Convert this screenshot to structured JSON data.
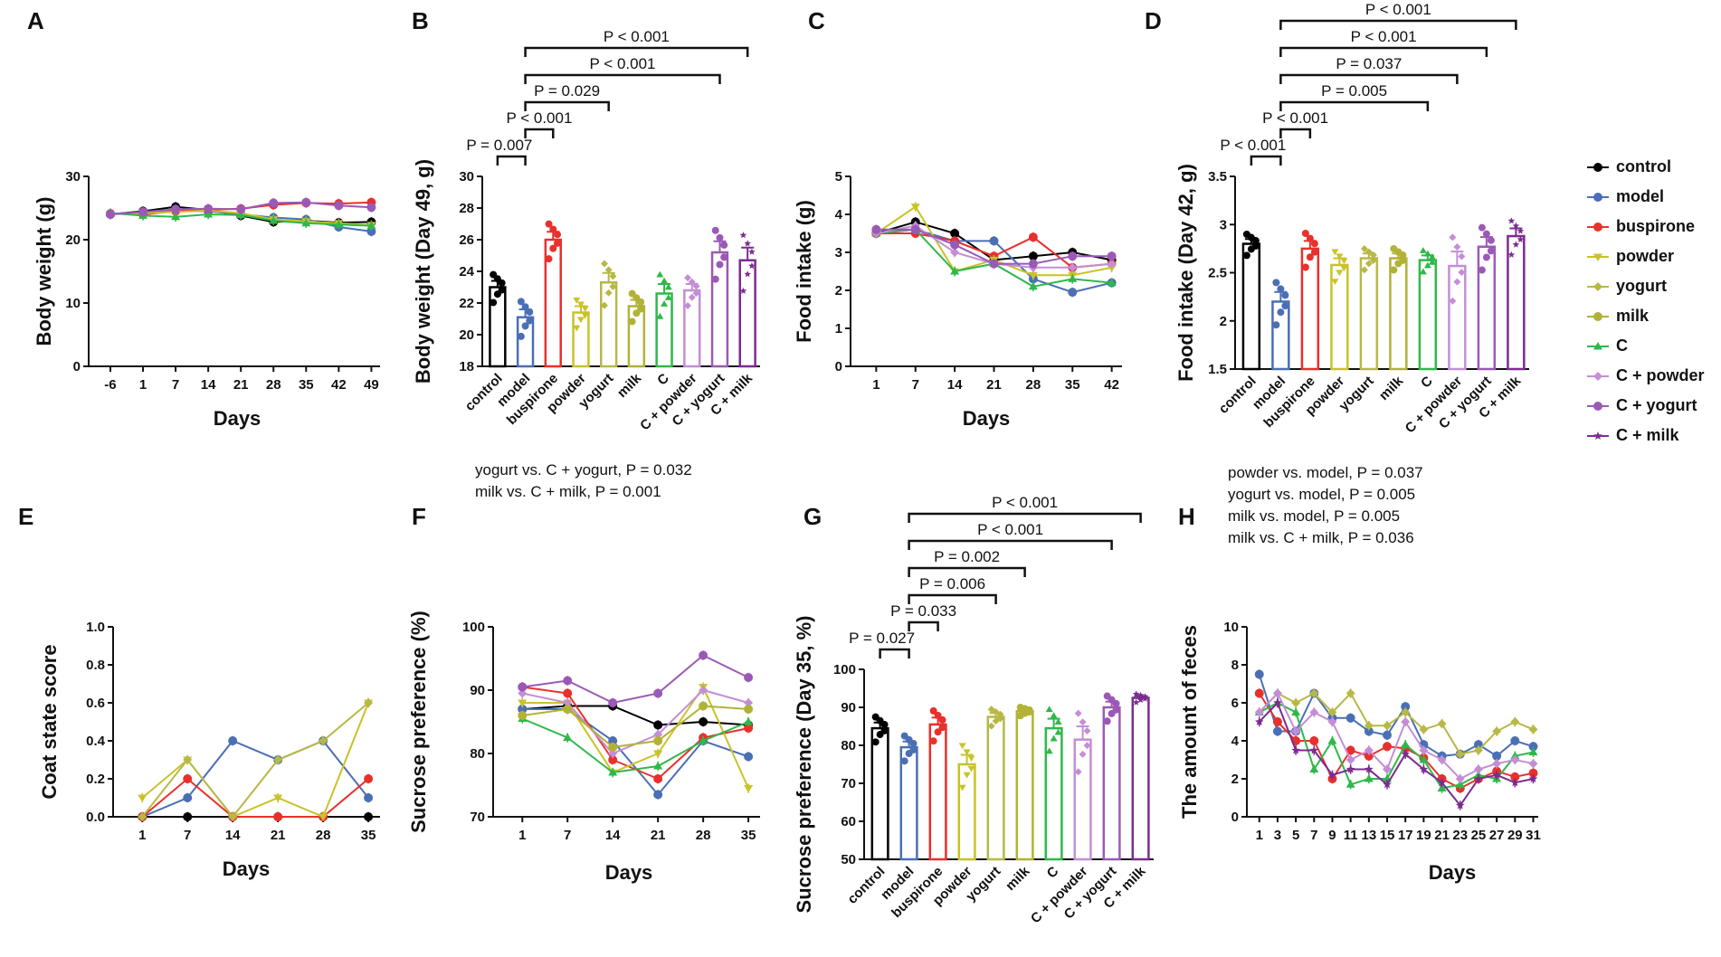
{
  "colors": {
    "control": "#000000",
    "model": "#4a6fb5",
    "buspirone": "#e8302c",
    "powder": "#c9c229",
    "yogurt": "#b8b846",
    "milk": "#b2b236",
    "C": "#2fb84a",
    "C + powder": "#c48ed6",
    "C + yogurt": "#9b59b6",
    "C + milk": "#7b2c8f"
  },
  "legend": {
    "items": [
      {
        "name": "control",
        "marker": "circle"
      },
      {
        "name": "model",
        "marker": "circle"
      },
      {
        "name": "buspirone",
        "marker": "circle"
      },
      {
        "name": "powder",
        "marker": "tri-down"
      },
      {
        "name": "yogurt",
        "marker": "diamond"
      },
      {
        "name": "milk",
        "marker": "circle"
      },
      {
        "name": "C",
        "marker": "tri-up"
      },
      {
        "name": "C + powder",
        "marker": "diamond"
      },
      {
        "name": "C + yogurt",
        "marker": "circle"
      },
      {
        "name": "C + milk",
        "marker": "star"
      }
    ]
  },
  "chart_data": [
    {
      "panel": "A",
      "type": "line",
      "xlabel": "Days",
      "ylabel": "Body weight (g)",
      "ylim": [
        0,
        30
      ],
      "yticks": [
        0,
        10,
        20,
        30
      ],
      "x": [
        "-6",
        "1",
        "7",
        "14",
        "21",
        "28",
        "35",
        "42",
        "49"
      ],
      "series": [
        {
          "name": "control",
          "values": [
            24.0,
            24.5,
            25.2,
            24.7,
            23.8,
            22.8,
            23.0,
            22.7,
            22.8
          ]
        },
        {
          "name": "model",
          "values": [
            24.1,
            24.3,
            24.6,
            24.5,
            24.0,
            23.5,
            23.2,
            22.0,
            21.3
          ]
        },
        {
          "name": "buspirone",
          "values": [
            24.1,
            24.0,
            24.5,
            24.7,
            24.9,
            25.5,
            25.8,
            25.7,
            25.9
          ]
        },
        {
          "name": "powder",
          "values": [
            24.0,
            24.2,
            24.4,
            24.6,
            24.2,
            23.2,
            22.9,
            22.6,
            22.3
          ]
        },
        {
          "name": "C",
          "values": [
            24.2,
            23.8,
            23.6,
            24.0,
            23.9,
            23.0,
            22.6,
            22.4,
            22.2
          ]
        },
        {
          "name": "C + yogurt",
          "values": [
            24.0,
            24.4,
            24.8,
            24.9,
            24.8,
            25.8,
            25.9,
            25.4,
            25.1
          ]
        }
      ]
    },
    {
      "panel": "B",
      "type": "bar",
      "ylabel": "Body weight (Day 49, g)",
      "ylim": [
        18,
        30
      ],
      "yticks": [
        18,
        20,
        22,
        24,
        26,
        28,
        30
      ],
      "categories": [
        "control",
        "model",
        "buspirone",
        "powder",
        "yogurt",
        "milk",
        "C",
        "C + powder",
        "C + yogurt",
        "C + milk"
      ],
      "values": [
        23.0,
        21.1,
        26.0,
        21.4,
        23.3,
        21.8,
        22.6,
        22.8,
        25.2,
        24.7
      ],
      "errors": [
        0.4,
        0.5,
        0.5,
        0.4,
        0.6,
        0.4,
        0.6,
        0.4,
        0.7,
        0.8
      ],
      "comparisons": [
        {
          "a": "control",
          "b": "model",
          "label": "P = 0.007"
        },
        {
          "a": "model",
          "b": "buspirone",
          "label": "P < 0.001"
        },
        {
          "a": "model",
          "b": "yogurt",
          "label": "P = 0.029"
        },
        {
          "a": "model",
          "b": "C + yogurt",
          "label": "P < 0.001"
        },
        {
          "a": "model",
          "b": "C + milk",
          "label": "P < 0.001"
        }
      ],
      "notes": [
        "yogurt vs. C + yogurt, P = 0.032",
        "milk vs. C + milk, P = 0.001"
      ]
    },
    {
      "panel": "C",
      "type": "line",
      "xlabel": "Days",
      "ylabel": "Food intake (g)",
      "ylim": [
        0,
        5
      ],
      "yticks": [
        0,
        1,
        2,
        3,
        4,
        5
      ],
      "x": [
        "1",
        "7",
        "14",
        "21",
        "28",
        "35",
        "42"
      ],
      "series": [
        {
          "name": "control",
          "values": [
            3.5,
            3.8,
            3.5,
            2.8,
            2.9,
            3.0,
            2.8
          ]
        },
        {
          "name": "model",
          "values": [
            3.5,
            3.6,
            3.3,
            3.3,
            2.3,
            1.95,
            2.2
          ]
        },
        {
          "name": "buspirone",
          "values": [
            3.5,
            3.5,
            3.3,
            2.9,
            3.4,
            2.6,
            2.7
          ]
        },
        {
          "name": "powder",
          "values": [
            3.5,
            4.2,
            2.5,
            2.8,
            2.4,
            2.4,
            2.6
          ]
        },
        {
          "name": "C",
          "values": [
            3.5,
            3.6,
            2.5,
            2.7,
            2.1,
            2.3,
            2.2
          ]
        },
        {
          "name": "C + powder",
          "values": [
            3.5,
            3.7,
            3.0,
            2.7,
            2.6,
            2.6,
            2.7
          ]
        },
        {
          "name": "C + yogurt",
          "values": [
            3.6,
            3.6,
            3.2,
            2.7,
            2.7,
            2.9,
            2.9
          ]
        }
      ]
    },
    {
      "panel": "D",
      "type": "bar",
      "ylabel": "Food intake (Day 42, g)",
      "ylim": [
        1.5,
        3.5
      ],
      "yticks": [
        1.5,
        2.0,
        2.5,
        3.0,
        3.5
      ],
      "categories": [
        "control",
        "model",
        "buspirone",
        "powder",
        "yogurt",
        "milk",
        "C",
        "C + powder",
        "C + yogurt",
        "C + milk"
      ],
      "values": [
        2.8,
        2.2,
        2.75,
        2.58,
        2.65,
        2.65,
        2.63,
        2.57,
        2.77,
        2.88
      ],
      "errors": [
        0.05,
        0.1,
        0.08,
        0.07,
        0.05,
        0.05,
        0.05,
        0.15,
        0.1,
        0.08
      ],
      "comparisons": [
        {
          "a": "control",
          "b": "model",
          "label": "P < 0.001"
        },
        {
          "a": "model",
          "b": "buspirone",
          "label": "P < 0.001"
        },
        {
          "a": "model",
          "b": "C",
          "label": "P = 0.005"
        },
        {
          "a": "model",
          "b": "C + powder",
          "label": "P = 0.037"
        },
        {
          "a": "model",
          "b": "C + yogurt",
          "label": "P < 0.001"
        },
        {
          "a": "model",
          "b": "C + milk",
          "label": "P < 0.001"
        }
      ],
      "notes": [
        "powder vs. model, P = 0.037",
        "yogurt vs. model, P = 0.005",
        "milk vs. model, P = 0.005",
        "milk vs. C + milk, P = 0.036"
      ]
    },
    {
      "panel": "E",
      "type": "line",
      "xlabel": "Days",
      "ylabel": "Coat state score",
      "ylim": [
        0,
        1.0
      ],
      "yticks": [
        "0.0",
        "0.2",
        "0.4",
        "0.6",
        "0.8",
        "1.0"
      ],
      "x": [
        "1",
        "7",
        "14",
        "21",
        "28",
        "35"
      ],
      "series": [
        {
          "name": "control",
          "values": [
            0,
            0,
            0,
            0,
            0,
            0
          ]
        },
        {
          "name": "model",
          "values": [
            0,
            0.1,
            0.4,
            0.3,
            0.4,
            0.1
          ]
        },
        {
          "name": "buspirone",
          "values": [
            0,
            0.2,
            0,
            0,
            0,
            0.2
          ]
        },
        {
          "name": "powder",
          "values": [
            0.1,
            0.3,
            0,
            0.1,
            0,
            0.6
          ]
        },
        {
          "name": "yogurt",
          "values": [
            0,
            0.3,
            0,
            0.3,
            0.4,
            0.6
          ]
        }
      ]
    },
    {
      "panel": "F",
      "type": "line",
      "xlabel": "Days",
      "ylabel": "Sucrose preference (%)",
      "ylim": [
        70,
        100
      ],
      "yticks": [
        70,
        80,
        90,
        100
      ],
      "x": [
        "1",
        "7",
        "14",
        "21",
        "28",
        "35"
      ],
      "series": [
        {
          "name": "control",
          "values": [
            87,
            87.5,
            87.5,
            84.5,
            85,
            84.5
          ]
        },
        {
          "name": "model",
          "values": [
            87,
            87,
            82,
            73.5,
            82,
            79.5
          ]
        },
        {
          "name": "buspirone",
          "values": [
            90.5,
            89.5,
            79,
            76,
            82.5,
            84
          ]
        },
        {
          "name": "powder",
          "values": [
            88,
            88,
            77,
            80,
            90.5,
            74.5
          ]
        },
        {
          "name": "C",
          "values": [
            85.5,
            82.5,
            77,
            78,
            82,
            85
          ]
        },
        {
          "name": "C + powder",
          "values": [
            89.5,
            88,
            80,
            83,
            90,
            88
          ]
        },
        {
          "name": "C + yogurt",
          "values": [
            90.5,
            91.5,
            88,
            89.5,
            95.5,
            92
          ]
        },
        {
          "name": "milk",
          "values": [
            86,
            87,
            81,
            82,
            87.5,
            87
          ]
        }
      ]
    },
    {
      "panel": "G",
      "type": "bar",
      "ylabel": "Sucrose preference (Day 35, %)",
      "ylim": [
        50,
        100
      ],
      "yticks": [
        50,
        60,
        70,
        80,
        90,
        100
      ],
      "categories": [
        "control",
        "model",
        "buspirone",
        "powder",
        "yogurt",
        "milk",
        "C",
        "C + powder",
        "C + yogurt",
        "C + milk"
      ],
      "values": [
        84.5,
        79.5,
        85.5,
        75,
        87.5,
        89,
        84.5,
        81.5,
        90,
        92.5
      ],
      "errors": [
        1.5,
        1.5,
        1.8,
        2.5,
        1,
        0.5,
        2.5,
        3.5,
        1.5,
        0.5
      ],
      "comparisons": [
        {
          "a": "control",
          "b": "model",
          "label": "P = 0.027"
        },
        {
          "a": "model",
          "b": "buspirone",
          "label": "P = 0.033"
        },
        {
          "a": "model",
          "b": "yogurt",
          "label": "P = 0.006"
        },
        {
          "a": "model",
          "b": "milk",
          "label": "P = 0.002"
        },
        {
          "a": "model",
          "b": "C + yogurt",
          "label": "P < 0.001"
        },
        {
          "a": "model",
          "b": "C + milk",
          "label": "P < 0.001"
        }
      ]
    },
    {
      "panel": "H",
      "type": "line",
      "xlabel": "Days",
      "ylabel": "The amount of feces",
      "ylim": [
        0,
        10
      ],
      "yticks": [
        0,
        2,
        4,
        6,
        8,
        10
      ],
      "x": [
        "1",
        "3",
        "5",
        "7",
        "9",
        "11",
        "13",
        "15",
        "17",
        "19",
        "21",
        "23",
        "25",
        "27",
        "29",
        "31"
      ],
      "series": [
        {
          "name": "model",
          "values": [
            7.5,
            4.5,
            4.5,
            6.5,
            5.2,
            5.2,
            4.5,
            4.3,
            5.8,
            3.8,
            3.2,
            3.3,
            3.8,
            3.2,
            4.0,
            3.7
          ]
        },
        {
          "name": "buspirone",
          "values": [
            6.5,
            5.0,
            4.0,
            4.0,
            2.0,
            3.5,
            3.2,
            3.7,
            3.6,
            3.1,
            2.0,
            1.5,
            2.0,
            2.4,
            2.1,
            2.3
          ]
        },
        {
          "name": "yogurt",
          "values": [
            5.5,
            6.5,
            6.0,
            6.5,
            5.5,
            6.5,
            4.8,
            4.8,
            5.5,
            4.6,
            4.9,
            3.3,
            3.5,
            4.5,
            5.0,
            4.6
          ]
        },
        {
          "name": "C",
          "values": [
            5.5,
            6.0,
            5.5,
            2.5,
            4.0,
            1.7,
            2.0,
            2.0,
            3.8,
            3.0,
            1.5,
            1.7,
            2.2,
            2.0,
            3.2,
            3.4
          ]
        },
        {
          "name": "C + powder",
          "values": [
            5.5,
            6.5,
            4.5,
            5.5,
            5.0,
            3.0,
            3.5,
            2.5,
            5.0,
            3.5,
            3.0,
            2.0,
            2.5,
            2.8,
            3.0,
            2.8
          ]
        },
        {
          "name": "C + milk",
          "values": [
            5.0,
            6.0,
            3.5,
            3.5,
            2.2,
            2.5,
            2.5,
            1.7,
            3.3,
            2.5,
            1.8,
            0.6,
            2.0,
            2.2,
            1.8,
            2.0
          ]
        }
      ]
    }
  ]
}
